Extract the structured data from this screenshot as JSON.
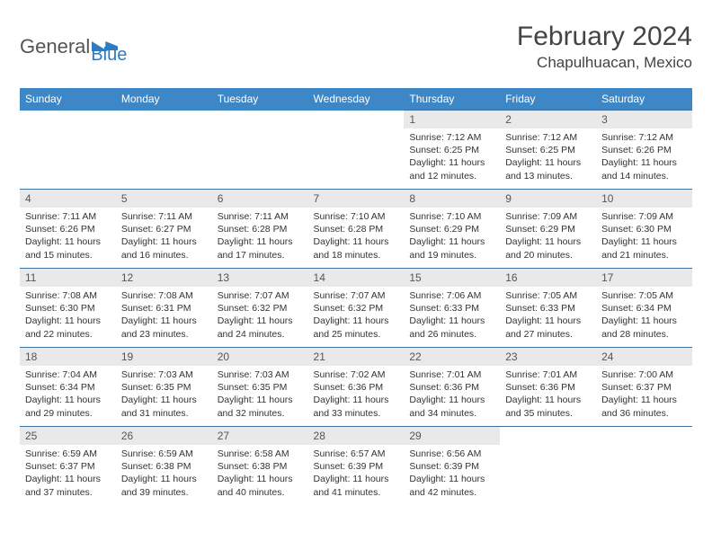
{
  "logo": {
    "text_general": "General",
    "text_blue": "Blue"
  },
  "title": "February 2024",
  "location": "Chapulhuacan, Mexico",
  "colors": {
    "header_bg": "#3d87c7",
    "header_text": "#ffffff",
    "daynum_bg": "#e9e9e9",
    "row_border": "#3d6fa0",
    "logo_blue": "#2f7bbf"
  },
  "weekdays": [
    "Sunday",
    "Monday",
    "Tuesday",
    "Wednesday",
    "Thursday",
    "Friday",
    "Saturday"
  ],
  "weeks": [
    [
      null,
      null,
      null,
      null,
      {
        "n": "1",
        "sr": "7:12 AM",
        "ss": "6:25 PM",
        "dl": "11 hours and 12 minutes."
      },
      {
        "n": "2",
        "sr": "7:12 AM",
        "ss": "6:25 PM",
        "dl": "11 hours and 13 minutes."
      },
      {
        "n": "3",
        "sr": "7:12 AM",
        "ss": "6:26 PM",
        "dl": "11 hours and 14 minutes."
      }
    ],
    [
      {
        "n": "4",
        "sr": "7:11 AM",
        "ss": "6:26 PM",
        "dl": "11 hours and 15 minutes."
      },
      {
        "n": "5",
        "sr": "7:11 AM",
        "ss": "6:27 PM",
        "dl": "11 hours and 16 minutes."
      },
      {
        "n": "6",
        "sr": "7:11 AM",
        "ss": "6:28 PM",
        "dl": "11 hours and 17 minutes."
      },
      {
        "n": "7",
        "sr": "7:10 AM",
        "ss": "6:28 PM",
        "dl": "11 hours and 18 minutes."
      },
      {
        "n": "8",
        "sr": "7:10 AM",
        "ss": "6:29 PM",
        "dl": "11 hours and 19 minutes."
      },
      {
        "n": "9",
        "sr": "7:09 AM",
        "ss": "6:29 PM",
        "dl": "11 hours and 20 minutes."
      },
      {
        "n": "10",
        "sr": "7:09 AM",
        "ss": "6:30 PM",
        "dl": "11 hours and 21 minutes."
      }
    ],
    [
      {
        "n": "11",
        "sr": "7:08 AM",
        "ss": "6:30 PM",
        "dl": "11 hours and 22 minutes."
      },
      {
        "n": "12",
        "sr": "7:08 AM",
        "ss": "6:31 PM",
        "dl": "11 hours and 23 minutes."
      },
      {
        "n": "13",
        "sr": "7:07 AM",
        "ss": "6:32 PM",
        "dl": "11 hours and 24 minutes."
      },
      {
        "n": "14",
        "sr": "7:07 AM",
        "ss": "6:32 PM",
        "dl": "11 hours and 25 minutes."
      },
      {
        "n": "15",
        "sr": "7:06 AM",
        "ss": "6:33 PM",
        "dl": "11 hours and 26 minutes."
      },
      {
        "n": "16",
        "sr": "7:05 AM",
        "ss": "6:33 PM",
        "dl": "11 hours and 27 minutes."
      },
      {
        "n": "17",
        "sr": "7:05 AM",
        "ss": "6:34 PM",
        "dl": "11 hours and 28 minutes."
      }
    ],
    [
      {
        "n": "18",
        "sr": "7:04 AM",
        "ss": "6:34 PM",
        "dl": "11 hours and 29 minutes."
      },
      {
        "n": "19",
        "sr": "7:03 AM",
        "ss": "6:35 PM",
        "dl": "11 hours and 31 minutes."
      },
      {
        "n": "20",
        "sr": "7:03 AM",
        "ss": "6:35 PM",
        "dl": "11 hours and 32 minutes."
      },
      {
        "n": "21",
        "sr": "7:02 AM",
        "ss": "6:36 PM",
        "dl": "11 hours and 33 minutes."
      },
      {
        "n": "22",
        "sr": "7:01 AM",
        "ss": "6:36 PM",
        "dl": "11 hours and 34 minutes."
      },
      {
        "n": "23",
        "sr": "7:01 AM",
        "ss": "6:36 PM",
        "dl": "11 hours and 35 minutes."
      },
      {
        "n": "24",
        "sr": "7:00 AM",
        "ss": "6:37 PM",
        "dl": "11 hours and 36 minutes."
      }
    ],
    [
      {
        "n": "25",
        "sr": "6:59 AM",
        "ss": "6:37 PM",
        "dl": "11 hours and 37 minutes."
      },
      {
        "n": "26",
        "sr": "6:59 AM",
        "ss": "6:38 PM",
        "dl": "11 hours and 39 minutes."
      },
      {
        "n": "27",
        "sr": "6:58 AM",
        "ss": "6:38 PM",
        "dl": "11 hours and 40 minutes."
      },
      {
        "n": "28",
        "sr": "6:57 AM",
        "ss": "6:39 PM",
        "dl": "11 hours and 41 minutes."
      },
      {
        "n": "29",
        "sr": "6:56 AM",
        "ss": "6:39 PM",
        "dl": "11 hours and 42 minutes."
      },
      null,
      null
    ]
  ],
  "labels": {
    "sunrise": "Sunrise:",
    "sunset": "Sunset:",
    "daylight": "Daylight:"
  }
}
